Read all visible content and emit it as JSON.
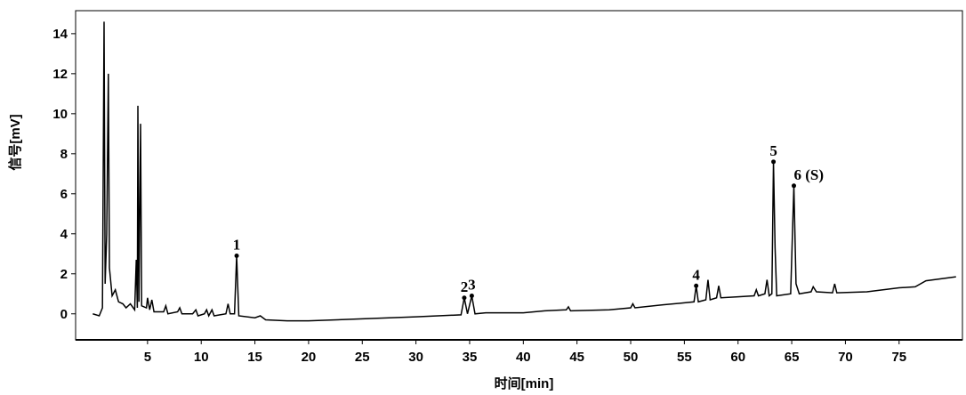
{
  "chart_data": {
    "type": "line",
    "x_label": "时间[min]",
    "y_label": "信号[mV]",
    "xlim": [
      -1.7,
      80.9
    ],
    "ylim": [
      -1.3,
      15.15
    ],
    "xticks": [
      5,
      10,
      15,
      20,
      25,
      30,
      35,
      40,
      45,
      50,
      55,
      60,
      65,
      70,
      75
    ],
    "yticks": [
      0,
      2,
      4,
      6,
      8,
      10,
      12,
      14
    ],
    "grid": false,
    "series": [
      {
        "color": "#000000",
        "x": [
          -0.1,
          0.5,
          0.8,
          0.95,
          1.05,
          1.2,
          1.35,
          1.45,
          1.7,
          2.0,
          2.3,
          2.7,
          3.0,
          3.4,
          3.8,
          3.95,
          4.05,
          4.1,
          4.2,
          4.35,
          4.45,
          4.9,
          5.0,
          5.2,
          5.4,
          5.6,
          6.5,
          6.7,
          6.9,
          7.8,
          8.0,
          8.2,
          9.2,
          9.5,
          9.7,
          10.3,
          10.5,
          10.7,
          11.0,
          11.2,
          12.3,
          12.5,
          12.7,
          13.1,
          13.3,
          13.5,
          15.0,
          15.5,
          16,
          18,
          20,
          25,
          30,
          34.2,
          34.5,
          34.8,
          35.2,
          35.5,
          36.5,
          40,
          42,
          44,
          44.2,
          44.4,
          48,
          50,
          50.2,
          50.4,
          53,
          55,
          55.9,
          56.1,
          56.3,
          57.0,
          57.2,
          57.4,
          58.0,
          58.2,
          58.4,
          60,
          61.5,
          61.7,
          61.9,
          62.5,
          62.7,
          62.9,
          63.15,
          63.3,
          63.45,
          63.6,
          64.9,
          65.2,
          65.4,
          65.7,
          66.8,
          67,
          67.3,
          68.8,
          69.0,
          69.2,
          72,
          75,
          76.5,
          77.5,
          80.3
        ],
        "values": [
          0,
          -0.1,
          0.3,
          14.6,
          1.5,
          4.0,
          12.0,
          2.3,
          0.9,
          1.2,
          0.6,
          0.5,
          0.3,
          0.5,
          0.2,
          2.7,
          0.3,
          10.4,
          0.6,
          9.5,
          0.4,
          0.3,
          0.8,
          0.2,
          0.7,
          0.1,
          0.1,
          0.4,
          0.0,
          0.1,
          0.3,
          0,
          0,
          0.2,
          -0.1,
          0.0,
          0.2,
          -0.1,
          0.2,
          -0.1,
          0.0,
          0.5,
          0.0,
          0.0,
          2.9,
          -0.1,
          -0.2,
          -0.1,
          -0.3,
          -0.35,
          -0.35,
          -0.25,
          -0.15,
          -0.05,
          0.8,
          0.0,
          0.9,
          0.0,
          0.05,
          0.05,
          0.15,
          0.2,
          0.35,
          0.15,
          0.2,
          0.3,
          0.5,
          0.3,
          0.45,
          0.55,
          0.6,
          1.4,
          0.6,
          0.7,
          1.7,
          0.7,
          0.8,
          1.4,
          0.8,
          0.85,
          0.9,
          1.2,
          0.9,
          1.0,
          1.7,
          0.9,
          1.0,
          7.6,
          3.3,
          0.9,
          1.0,
          6.4,
          1.5,
          1.0,
          1.1,
          1.35,
          1.1,
          1.05,
          1.5,
          1.05,
          1.1,
          1.3,
          1.35,
          1.65,
          1.85
        ]
      }
    ],
    "annotations": [
      {
        "label": "1",
        "x": 13.3,
        "y": 2.9
      },
      {
        "label": "2",
        "x": 34.5,
        "y": 0.8
      },
      {
        "label": "3",
        "x": 35.2,
        "y": 0.9
      },
      {
        "label": "4",
        "x": 56.1,
        "y": 1.4
      },
      {
        "label": "5",
        "x": 63.3,
        "y": 7.6
      },
      {
        "label": "6 (S)",
        "x": 65.2,
        "y": 6.4
      }
    ]
  }
}
